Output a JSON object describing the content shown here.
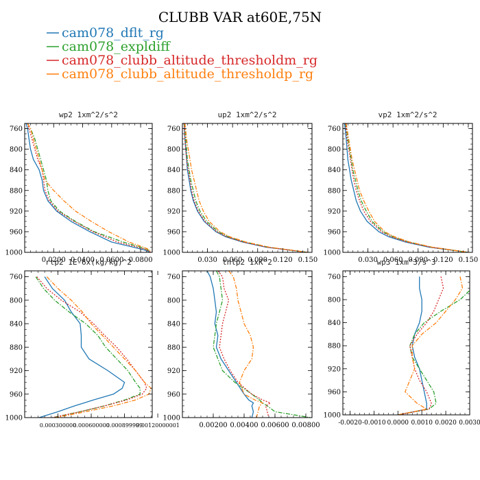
{
  "figure": {
    "title": "CLUBB VAR at60E,75N"
  },
  "legend": [
    {
      "name": "cam078_dflt_rg",
      "color": "#1f77b4",
      "dash": "solid"
    },
    {
      "name": "cam078_expldiff",
      "color": "#2ca02c",
      "dash": "dashdot"
    },
    {
      "name": "cam078_clubb_altitude_thresholdm_rg",
      "color": "#d62728",
      "dash": "dot"
    },
    {
      "name": "cam078_clubb_altitude_thresholdp_rg",
      "color": "#ff7f0e",
      "dash": "dashdot"
    }
  ],
  "chart_data": [
    {
      "type": "line",
      "title": "wp2  1xm^2/s^2",
      "xlabel": "",
      "ylabel": "",
      "xlim": [
        0.0,
        0.088
      ],
      "ylim": [
        1000,
        750
      ],
      "grid": false,
      "xticks": [
        0.02,
        0.04,
        0.06,
        0.08
      ],
      "xtick_labels": [
        "0.0200",
        "0.0400",
        "0.0600",
        "0.0800"
      ],
      "yticks": [
        760,
        800,
        840,
        880,
        920,
        960,
        1000
      ],
      "y": [
        750,
        760,
        780,
        800,
        820,
        840,
        860,
        880,
        900,
        920,
        940,
        960,
        980,
        990,
        995,
        1000
      ],
      "series": [
        {
          "values": [
            0.001,
            0.002,
            0.003,
            0.004,
            0.006,
            0.01,
            0.012,
            0.013,
            0.016,
            0.022,
            0.032,
            0.045,
            0.06,
            0.075,
            0.082,
            0.087
          ]
        },
        {
          "values": [
            0.002,
            0.004,
            0.007,
            0.009,
            0.011,
            0.013,
            0.015,
            0.016,
            0.018,
            0.024,
            0.035,
            0.048,
            0.068,
            0.08,
            0.085,
            0.086
          ]
        },
        {
          "values": [
            0.002,
            0.003,
            0.005,
            0.007,
            0.009,
            0.012,
            0.013,
            0.014,
            0.017,
            0.023,
            0.034,
            0.047,
            0.064,
            0.078,
            0.084,
            0.087
          ]
        },
        {
          "values": [
            0.002,
            0.004,
            0.006,
            0.008,
            0.01,
            0.012,
            0.014,
            0.02,
            0.027,
            0.035,
            0.046,
            0.058,
            0.072,
            0.082,
            0.086,
            0.087
          ]
        }
      ]
    },
    {
      "type": "line",
      "title": "up2  1xm^2/s^2",
      "xlabel": "",
      "ylabel": "",
      "xlim": [
        0.0,
        0.155
      ],
      "ylim": [
        1000,
        750
      ],
      "grid": false,
      "xticks": [
        0.03,
        0.06,
        0.09,
        0.12,
        0.15
      ],
      "xtick_labels": [
        "0.030",
        "0.060",
        "0.090",
        "0.120",
        "0.150"
      ],
      "yticks": [
        760,
        800,
        840,
        880,
        920,
        960,
        1000
      ],
      "y": [
        750,
        780,
        800,
        820,
        840,
        860,
        880,
        900,
        920,
        940,
        960,
        970,
        980,
        990,
        1000
      ],
      "series": [
        {
          "values": [
            0.002,
            0.003,
            0.004,
            0.005,
            0.006,
            0.008,
            0.01,
            0.013,
            0.018,
            0.026,
            0.04,
            0.052,
            0.072,
            0.1,
            0.15
          ]
        },
        {
          "values": [
            0.002,
            0.004,
            0.005,
            0.006,
            0.008,
            0.01,
            0.013,
            0.016,
            0.021,
            0.029,
            0.043,
            0.055,
            0.075,
            0.103,
            0.15
          ]
        },
        {
          "values": [
            0.002,
            0.003,
            0.004,
            0.005,
            0.007,
            0.009,
            0.011,
            0.014,
            0.019,
            0.027,
            0.041,
            0.053,
            0.073,
            0.101,
            0.15
          ]
        },
        {
          "values": [
            0.003,
            0.005,
            0.007,
            0.009,
            0.011,
            0.014,
            0.017,
            0.02,
            0.025,
            0.032,
            0.045,
            0.057,
            0.076,
            0.104,
            0.15
          ]
        }
      ]
    },
    {
      "type": "line",
      "title": "vp2  1xm^2/s^2",
      "xlabel": "",
      "ylabel": "",
      "xlim": [
        0.0,
        0.155
      ],
      "ylim": [
        1000,
        750
      ],
      "grid": false,
      "xticks": [
        0.03,
        0.06,
        0.09,
        0.12,
        0.15
      ],
      "xtick_labels": [
        "0.030",
        "0.060",
        "0.090",
        "0.120",
        "0.150"
      ],
      "yticks": [
        760,
        800,
        840,
        880,
        920,
        960,
        1000
      ],
      "y": [
        750,
        780,
        800,
        820,
        840,
        860,
        880,
        900,
        920,
        940,
        960,
        970,
        980,
        990,
        1000
      ],
      "series": [
        {
          "values": [
            0.002,
            0.004,
            0.005,
            0.006,
            0.008,
            0.01,
            0.013,
            0.016,
            0.021,
            0.029,
            0.043,
            0.055,
            0.075,
            0.103,
            0.15
          ]
        },
        {
          "values": [
            0.003,
            0.006,
            0.008,
            0.01,
            0.012,
            0.015,
            0.018,
            0.022,
            0.028,
            0.035,
            0.048,
            0.06,
            0.079,
            0.106,
            0.15
          ]
        },
        {
          "values": [
            0.003,
            0.005,
            0.007,
            0.009,
            0.011,
            0.013,
            0.016,
            0.02,
            0.025,
            0.033,
            0.046,
            0.058,
            0.077,
            0.105,
            0.15
          ]
        },
        {
          "values": [
            0.004,
            0.007,
            0.009,
            0.011,
            0.014,
            0.017,
            0.02,
            0.025,
            0.031,
            0.038,
            0.05,
            0.062,
            0.08,
            0.107,
            0.15
          ]
        }
      ]
    },
    {
      "type": "line",
      "title": "rtp2  1E-6x(kg/kg)^2",
      "xlabel": "",
      "ylabel": "",
      "xlim": [
        0.0,
        0.00115
      ],
      "ylim": [
        1000,
        750
      ],
      "grid": false,
      "xticks": [
        0.0003,
        0.0006,
        0.0009,
        0.0012
      ],
      "xtick_labels": [
        "0.000300000",
        "0.000600000",
        "0.000899999",
        "0.00120000001"
      ],
      "yticks": [
        760,
        800,
        840,
        880,
        920,
        960,
        1000
      ],
      "y": [
        760,
        780,
        800,
        820,
        840,
        860,
        880,
        900,
        920,
        940,
        950,
        960,
        970,
        980,
        990,
        1000
      ],
      "series": [
        {
          "values": [
            0.00018,
            0.00025,
            0.00036,
            0.00042,
            0.0005,
            0.00051,
            0.00051,
            0.00058,
            0.00075,
            0.0009,
            0.00088,
            0.0008,
            0.00062,
            0.00045,
            0.0003,
            0.00013
          ]
        },
        {
          "values": [
            0.0001,
            0.00017,
            0.00027,
            0.0004,
            0.00055,
            0.00066,
            0.00073,
            0.00083,
            0.00093,
            0.001,
            0.00104,
            0.00104,
            0.0009,
            0.00072,
            0.0005,
            0.00025
          ]
        },
        {
          "values": [
            0.00011,
            0.0002,
            0.00033,
            0.0005,
            0.00062,
            0.00072,
            0.00083,
            0.00092,
            0.001,
            0.00108,
            0.0011,
            0.00106,
            0.00092,
            0.00072,
            0.0005,
            0.00025
          ]
        },
        {
          "values": [
            0.0002,
            0.0003,
            0.00042,
            0.00052,
            0.0006,
            0.0007,
            0.0008,
            0.0009,
            0.001,
            0.00108,
            0.00114,
            0.00112,
            0.001,
            0.0008,
            0.00055,
            0.00028
          ]
        }
      ]
    },
    {
      "type": "line",
      "title": "thlp2  1xK^2",
      "xlabel": "",
      "ylabel": "",
      "xlim": [
        0.0,
        0.0084
      ],
      "ylim": [
        1000,
        750
      ],
      "grid": false,
      "xticks": [
        0.002,
        0.004,
        0.006,
        0.008
      ],
      "xtick_labels": [
        "0.00200",
        "0.00400",
        "0.00600",
        "0.00800"
      ],
      "yticks": [
        760,
        800,
        840,
        880,
        920,
        960,
        1000
      ],
      "y": [
        750,
        760,
        780,
        800,
        820,
        840,
        860,
        880,
        900,
        920,
        940,
        960,
        970,
        975,
        980,
        990,
        1000
      ],
      "series": [
        {
          "values": [
            0.0016,
            0.0018,
            0.002,
            0.0021,
            0.0022,
            0.0021,
            0.0023,
            0.0022,
            0.0025,
            0.003,
            0.0035,
            0.004,
            0.0043,
            0.0046,
            0.0045,
            0.0046,
            0.0045
          ]
        },
        {
          "values": [
            0.0022,
            0.0024,
            0.0025,
            0.0026,
            0.0024,
            0.0022,
            0.0021,
            0.002,
            0.0023,
            0.0026,
            0.0034,
            0.0045,
            0.005,
            0.0052,
            0.0055,
            0.006,
            0.0083
          ]
        },
        {
          "values": [
            0.0023,
            0.0026,
            0.0027,
            0.003,
            0.0028,
            0.0026,
            0.0025,
            0.0024,
            0.0027,
            0.0031,
            0.0036,
            0.0045,
            0.0052,
            0.0057,
            0.0054,
            0.0055,
            0.0056
          ]
        },
        {
          "values": [
            0.003,
            0.0033,
            0.0035,
            0.0036,
            0.0038,
            0.004,
            0.0044,
            0.0046,
            0.0045,
            0.004,
            0.0037,
            0.004,
            0.0047,
            0.0052,
            0.005,
            0.0049,
            0.0048
          ]
        }
      ]
    },
    {
      "type": "line",
      "title": "wp3  1xm^3/s^3",
      "xlabel": "",
      "ylabel": "",
      "xlim": [
        -0.0023,
        0.003
      ],
      "ylim": [
        1000,
        750
      ],
      "grid": false,
      "xticks": [
        -0.002,
        -0.001,
        0.0,
        0.001,
        0.002,
        0.003
      ],
      "xtick_labels": [
        "-0.0020",
        "-0.0010",
        "0.0000",
        "0.0010",
        "0.0020",
        "0.0030"
      ],
      "yticks": [
        760,
        800,
        840,
        880,
        920,
        960,
        1000
      ],
      "y": [
        760,
        780,
        800,
        820,
        840,
        860,
        880,
        900,
        920,
        940,
        960,
        980,
        990,
        1000
      ],
      "series": [
        {
          "values": [
            0.0009,
            0.0009,
            0.001,
            0.001,
            0.0009,
            0.0007,
            0.0006,
            0.0007,
            0.0009,
            0.001,
            0.0011,
            0.0012,
            0.0012,
            0.0
          ]
        },
        {
          "values": [
            0.003,
            0.0031,
            0.0026,
            0.0018,
            0.0011,
            0.0007,
            0.0005,
            0.0006,
            0.0009,
            0.0012,
            0.0015,
            0.0016,
            0.0013,
            0.0
          ]
        },
        {
          "values": [
            0.0018,
            0.0019,
            0.0017,
            0.0015,
            0.0012,
            0.0008,
            0.0005,
            0.0006,
            0.0007,
            0.0009,
            0.0012,
            0.0014,
            0.0013,
            0.0
          ]
        },
        {
          "values": [
            0.0026,
            0.0027,
            0.0024,
            0.002,
            0.0016,
            0.001,
            0.0006,
            0.0006,
            0.0007,
            0.0005,
            0.0003,
            0.0008,
            0.0012,
            0.0
          ]
        }
      ]
    }
  ]
}
